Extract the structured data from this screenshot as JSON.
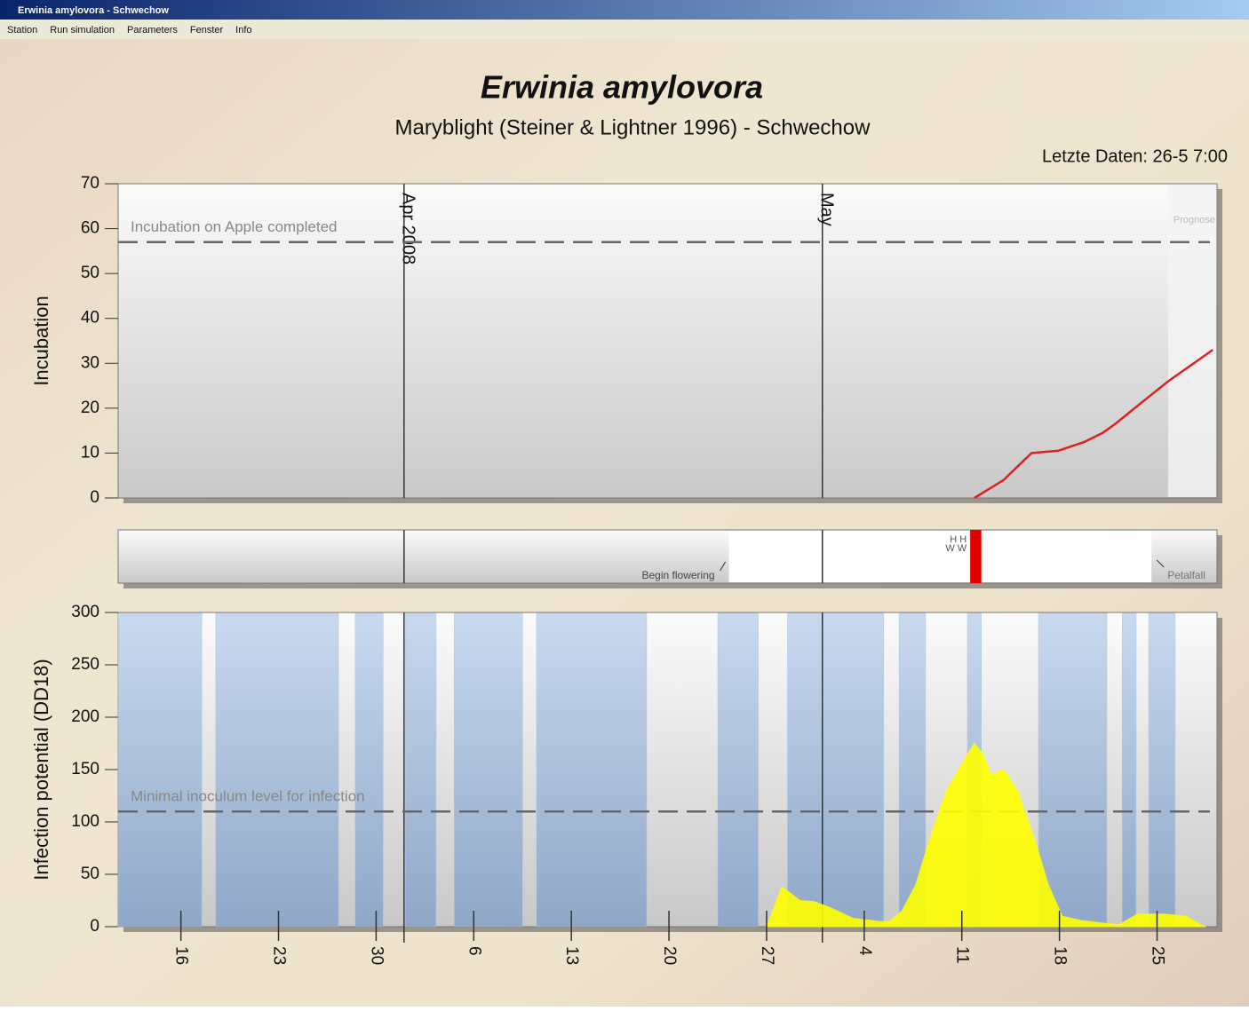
{
  "window": {
    "title": "Erwinia amylovora - Schwechow",
    "menu": [
      "Station",
      "Run simulation",
      "Parameters",
      "Fenster",
      "Info"
    ]
  },
  "header": {
    "title": "Erwinia amylovora",
    "subtitle": "Maryblight (Steiner & Lightner 1996) - Schwechow",
    "last_data": "Letzte Daten: 26-5 7:00"
  },
  "chart_data": [
    {
      "type": "line",
      "ylabel": "Incubation",
      "xlim": [
        -4.5,
        74.3
      ],
      "ylim": [
        0,
        70
      ],
      "yticks": [
        0,
        10,
        20,
        30,
        40,
        50,
        60,
        70
      ],
      "months": [
        {
          "x": 16,
          "label": "Apr 2008"
        },
        {
          "x": 46,
          "label": "May"
        }
      ],
      "threshold": {
        "value": 57,
        "label": "Incubation on Apple completed"
      },
      "prognosis": {
        "x": 70.8,
        "label": "Prognose"
      },
      "series": [
        {
          "color": "#e02020",
          "x": [
            56.9,
            59.0,
            61.0,
            62.9,
            64.8,
            66.1,
            67.0,
            69.2,
            70.8,
            74.0
          ],
          "values": [
            0,
            4,
            10,
            10.5,
            12.5,
            14.5,
            16.5,
            22,
            26,
            33
          ]
        }
      ]
    },
    {
      "type": "phenology",
      "xlim": [
        -4.5,
        74.3
      ],
      "flowering": {
        "x": [
          39.3,
          69.6
        ],
        "labels": [
          "Begin flowering",
          "Petalfall"
        ]
      },
      "event": {
        "x": [
          56.6,
          57.4
        ],
        "color": "#e00000"
      },
      "markers": [
        "H H",
        "W W"
      ]
    },
    {
      "type": "area",
      "ylabel": "Infection potential (DD18)",
      "xlim": [
        -4.5,
        74.3
      ],
      "ylim": [
        0,
        300
      ],
      "yticks": [
        0,
        50,
        100,
        150,
        200,
        250,
        300
      ],
      "xticks": [
        {
          "value": 0,
          "label": "16"
        },
        {
          "value": 7,
          "label": "23"
        },
        {
          "value": 14,
          "label": "30"
        },
        {
          "value": 21,
          "label": "6"
        },
        {
          "value": 28,
          "label": "13"
        },
        {
          "value": 35,
          "label": "20"
        },
        {
          "value": 42,
          "label": "27"
        },
        {
          "value": 49,
          "label": "4"
        },
        {
          "value": 56,
          "label": "11"
        },
        {
          "value": 63,
          "label": "18"
        },
        {
          "value": 70,
          "label": "25"
        }
      ],
      "threshold": {
        "value": 110,
        "label": "Minimal inoculum level for infection"
      },
      "band_color": "#a9c1df",
      "wet_periods": [
        [
          -4.5,
          1.5
        ],
        [
          2.5,
          11.3
        ],
        [
          12.5,
          14.5
        ],
        [
          16.1,
          18.3
        ],
        [
          19.6,
          24.5
        ],
        [
          25.5,
          33.4
        ],
        [
          38.5,
          41.4
        ],
        [
          43.5,
          50.4
        ],
        [
          51.5,
          53.4
        ],
        [
          56.4,
          57.4
        ],
        [
          61.5,
          66.4
        ],
        [
          67.5,
          68.5
        ],
        [
          69.4,
          71.3
        ]
      ],
      "series": [
        {
          "color": "#ffff00",
          "x": [
            42,
            43.1,
            44.4,
            45.4,
            46.6,
            48.2,
            50.1,
            50.8,
            51.7,
            52.7,
            53.6,
            54.9,
            56.2,
            56.9,
            57.5,
            58.1,
            59.0,
            60.0,
            61.3,
            62.2,
            63.2,
            64.5,
            66.4,
            67.3,
            68.6,
            70.5,
            72.1,
            73.1,
            73.5
          ],
          "values": [
            0,
            38,
            25,
            24,
            18,
            8,
            5,
            5,
            15,
            40,
            80,
            130,
            160,
            175,
            165,
            145,
            150,
            130,
            80,
            40,
            10,
            6,
            3,
            2,
            12,
            12,
            10,
            2,
            0
          ]
        }
      ]
    }
  ]
}
